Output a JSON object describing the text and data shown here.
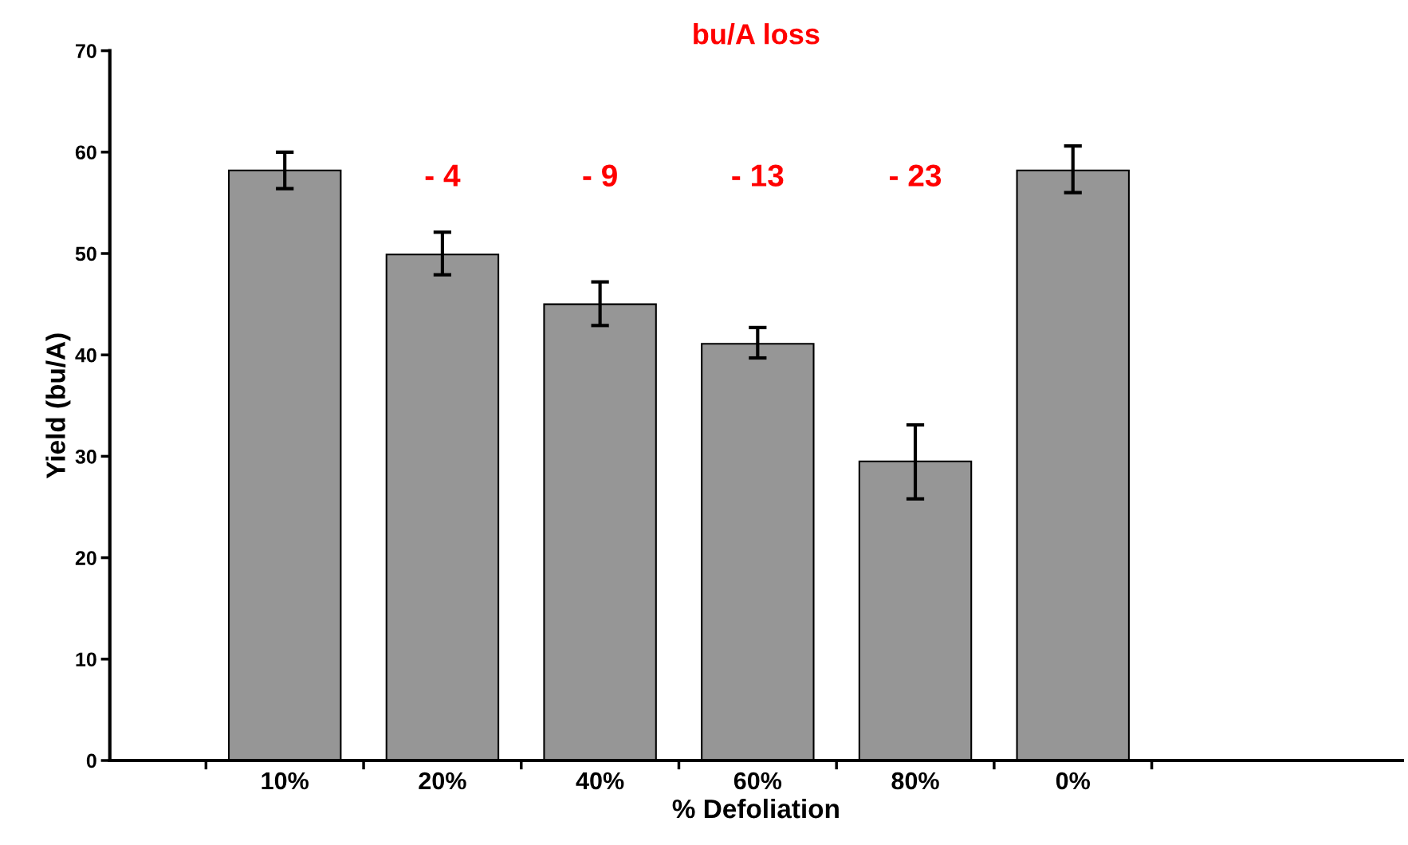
{
  "chart_data": {
    "type": "bar",
    "title": "bu/A loss",
    "xlabel": "% Defoliation",
    "ylabel": "Yield (bu/A)",
    "categories": [
      "10%",
      "20%",
      "40%",
      "60%",
      "80%",
      "0%"
    ],
    "values": [
      58.2,
      49.9,
      45.0,
      41.1,
      29.5,
      58.2
    ],
    "errors": [
      [
        56.4,
        60.0
      ],
      [
        47.9,
        52.1
      ],
      [
        42.9,
        47.2
      ],
      [
        39.7,
        42.7
      ],
      [
        25.8,
        33.1
      ],
      [
        56.0,
        60.6
      ]
    ],
    "color": "#969696",
    "annotations": [
      "- 4",
      "- 9",
      "- 13",
      "- 23"
    ],
    "ylim": [
      0,
      70
    ],
    "yticks": [
      0,
      10,
      20,
      30,
      40,
      50,
      60,
      70
    ],
    "grid": false,
    "legend": false
  }
}
